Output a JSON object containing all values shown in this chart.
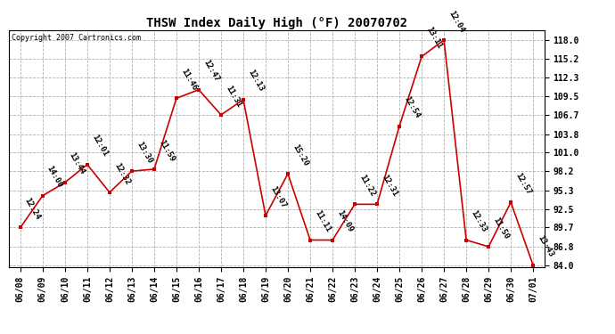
{
  "title": "THSW Index Daily High (°F) 20070702",
  "copyright": "Copyright 2007 Cartronics.com",
  "x_labels": [
    "06/08",
    "06/09",
    "06/10",
    "06/11",
    "06/12",
    "06/13",
    "06/14",
    "06/15",
    "06/16",
    "06/17",
    "06/18",
    "06/19",
    "06/20",
    "06/21",
    "06/22",
    "06/23",
    "06/24",
    "06/25",
    "06/26",
    "06/27",
    "06/28",
    "06/29",
    "06/30",
    "07/01"
  ],
  "y_values": [
    89.7,
    94.5,
    96.5,
    99.2,
    95.0,
    98.2,
    98.5,
    109.2,
    110.5,
    106.7,
    109.0,
    91.5,
    97.8,
    87.8,
    87.8,
    93.2,
    93.2,
    105.0,
    115.5,
    118.0,
    87.8,
    86.8,
    93.5,
    84.0
  ],
  "time_labels": [
    "12:24",
    "14:00",
    "13:44",
    "12:01",
    "12:32",
    "13:30",
    "11:59",
    "11:46",
    "12:47",
    "11:31",
    "12:13",
    "13:07",
    "15:20",
    "11:11",
    "14:09",
    "11:22",
    "12:31",
    "12:54",
    "13:11",
    "12:04",
    "12:33",
    "11:50",
    "12:57",
    "13:43"
  ],
  "y_ticks": [
    84.0,
    86.8,
    89.7,
    92.5,
    95.3,
    98.2,
    101.0,
    103.8,
    106.7,
    109.5,
    112.3,
    115.2,
    118.0
  ],
  "y_min": 84.0,
  "y_max": 118.0,
  "line_color": "#cc0000",
  "marker_color": "#cc0000",
  "background_color": "#ffffff",
  "grid_color": "#b0b0b0",
  "title_fontsize": 10,
  "tick_fontsize": 7,
  "annotation_fontsize": 6.5
}
